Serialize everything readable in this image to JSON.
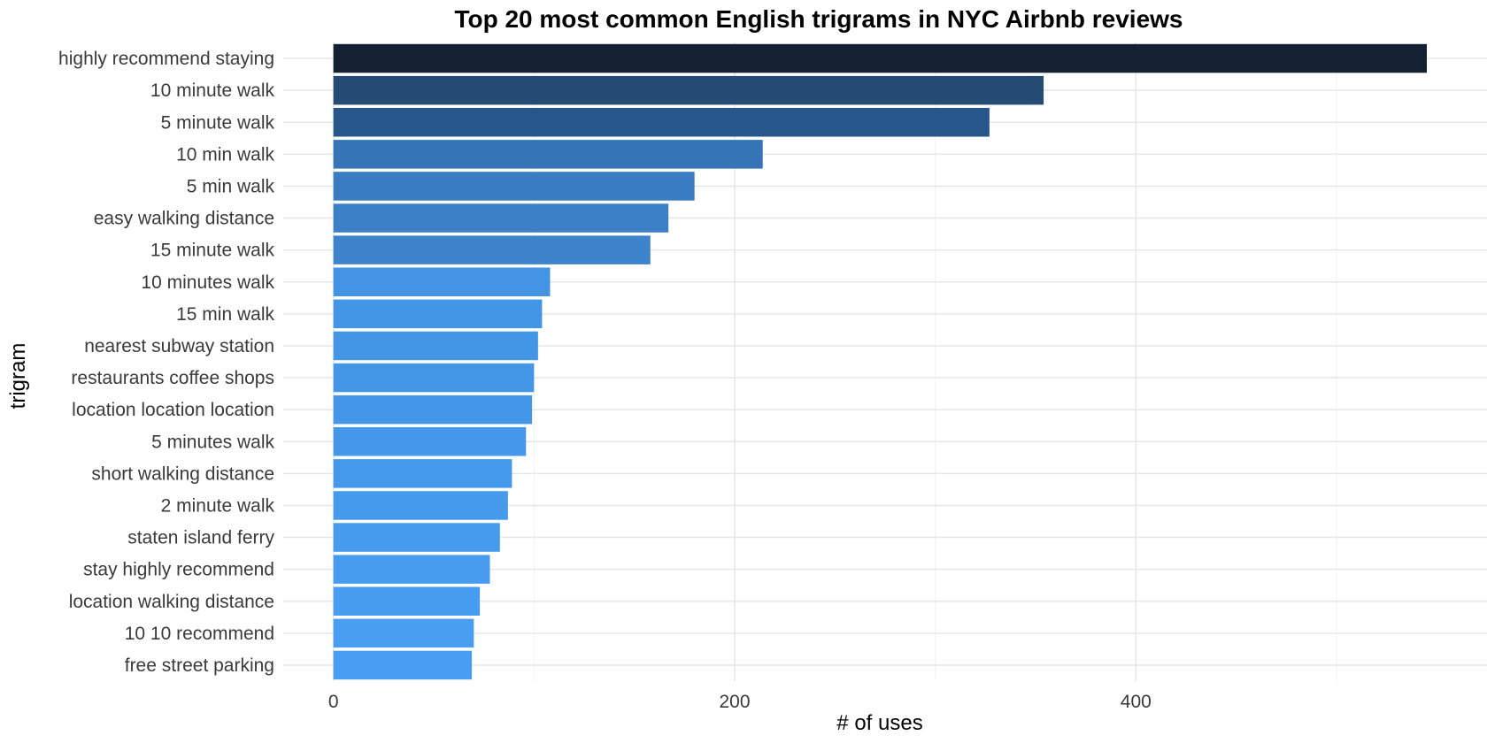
{
  "chart_data": {
    "type": "bar",
    "orientation": "horizontal",
    "title": "Top 20 most common English trigrams in NYC Airbnb reviews",
    "xlabel": "# of uses",
    "ylabel": "trigram",
    "xlim": [
      -25,
      575
    ],
    "x_ticks": [
      0,
      200,
      400
    ],
    "grid": true,
    "legend": "none",
    "color_scale": {
      "low": "#132132",
      "high": "#56B1F7",
      "note_levels": [
        "#132132",
        "#234A73",
        "#27568A",
        "#3574B7",
        "#3A7EC4",
        "#3E83C9",
        "#3F86CD",
        "#4393E3"
      ]
    },
    "categories": [
      "highly recommend staying",
      "10 minute walk",
      "5 minute walk",
      "10 min walk",
      "5 min walk",
      "easy walking distance",
      "15 minute walk",
      "10 minutes walk",
      "15 min walk",
      "nearest subway station",
      "restaurants coffee shops",
      "location location location",
      "5 minutes walk",
      "short walking distance",
      "2 minute walk",
      "staten island ferry",
      "stay highly recommend",
      "location walking distance",
      "10 10 recommend",
      "free street parking"
    ],
    "values": [
      545,
      354,
      327,
      214,
      180,
      167,
      158,
      108,
      104,
      102,
      100,
      99,
      96,
      89,
      87,
      83,
      78,
      73,
      70,
      69
    ],
    "bar_colors": [
      "#132132",
      "#244B74",
      "#27568A",
      "#3574B7",
      "#397CC2",
      "#3B80C7",
      "#3E84CC",
      "#4394E4",
      "#4395E6",
      "#4396E6",
      "#4497E7",
      "#4497E8",
      "#4598E9",
      "#4599EB",
      "#469AEC",
      "#469BED",
      "#479CEF",
      "#479DF0",
      "#489EF1",
      "#489EF2"
    ]
  }
}
